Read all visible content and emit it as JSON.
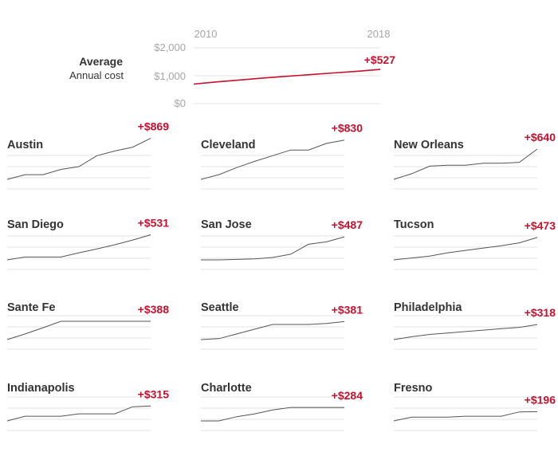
{
  "colors": {
    "accent": "#c8102e",
    "line": "#555555",
    "grid": "#e3e3e3",
    "tick": "#a6a6a6"
  },
  "chart_data": [
    {
      "type": "line",
      "title": "Average",
      "subtitle": "Annual cost",
      "x": [
        2010,
        2011,
        2012,
        2013,
        2014,
        2015,
        2016,
        2017,
        2018
      ],
      "x_tick_labels": [
        "2010",
        "2018"
      ],
      "y_tick_labels": [
        "$2,000",
        "$1,000",
        "$0"
      ],
      "ylim": [
        0,
        2000
      ],
      "series": [
        {
          "values": [
            700,
            780,
            850,
            920,
            980,
            1040,
            1100,
            1160,
            1227
          ]
        }
      ],
      "annotation": "+$527"
    },
    {
      "type": "line",
      "x": [
        2010,
        2011,
        2012,
        2013,
        2014,
        2015,
        2016,
        2017,
        2018
      ],
      "ylim": [
        0,
        2000
      ],
      "panels": [
        {
          "city": "Austin",
          "delta": "+$869",
          "values": [
            0,
            100,
            100,
            210,
            270,
            500,
            600,
            680,
            869
          ]
        },
        {
          "city": "Cleveland",
          "delta": "+$830",
          "values": [
            0,
            100,
            250,
            380,
            500,
            620,
            620,
            760,
            830
          ]
        },
        {
          "city": "New Orleans",
          "delta": "+$640",
          "values": [
            0,
            120,
            280,
            300,
            300,
            340,
            340,
            360,
            640
          ]
        },
        {
          "city": "San Diego",
          "delta": "+$531",
          "values": [
            0,
            60,
            60,
            60,
            150,
            230,
            320,
            420,
            531
          ]
        },
        {
          "city": "San Jose",
          "delta": "+$487",
          "values": [
            0,
            0,
            10,
            20,
            50,
            120,
            330,
            380,
            487
          ]
        },
        {
          "city": "Tucson",
          "delta": "+$473",
          "values": [
            0,
            40,
            80,
            150,
            200,
            250,
            300,
            360,
            473
          ]
        },
        {
          "city": "Sante Fe",
          "delta": "+$388",
          "values": [
            0,
            120,
            250,
            388,
            388,
            388,
            388,
            388,
            388
          ]
        },
        {
          "city": "Seattle",
          "delta": "+$381",
          "values": [
            0,
            20,
            120,
            220,
            320,
            320,
            320,
            340,
            381
          ]
        },
        {
          "city": "Philadelphia",
          "delta": "+$318",
          "values": [
            0,
            60,
            110,
            140,
            170,
            200,
            230,
            260,
            318
          ]
        },
        {
          "city": "Indianapolis",
          "delta": "+$315",
          "values": [
            0,
            100,
            100,
            100,
            150,
            150,
            150,
            300,
            315
          ]
        },
        {
          "city": "Charlotte",
          "delta": "+$284",
          "values": [
            0,
            0,
            90,
            150,
            230,
            284,
            284,
            284,
            284
          ]
        },
        {
          "city": "Fresno",
          "delta": "+$196",
          "values": [
            0,
            80,
            80,
            80,
            100,
            100,
            100,
            190,
            196
          ]
        }
      ]
    }
  ]
}
